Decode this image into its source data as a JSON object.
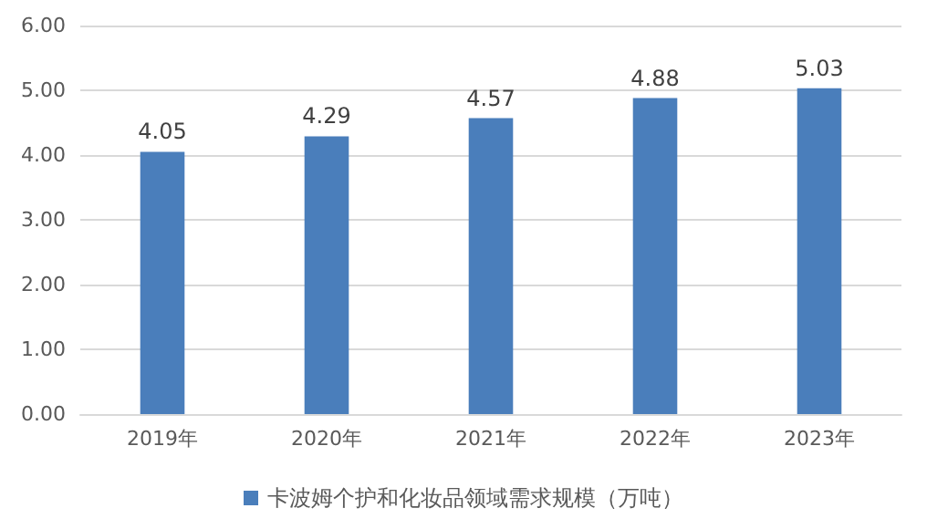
{
  "chart_data": {
    "type": "bar",
    "categories": [
      "2019年",
      "2020年",
      "2021年",
      "2022年",
      "2023年"
    ],
    "series": [
      {
        "name": "卡波姆个护和化妆品领域需求规模（万吨）",
        "color": "#4a7ebb",
        "values": [
          4.05,
          4.29,
          4.57,
          4.88,
          5.03
        ]
      }
    ],
    "ylim": [
      0,
      6
    ],
    "yticks": [
      {
        "value": 0,
        "label": "0.00"
      },
      {
        "value": 1,
        "label": "1.00"
      },
      {
        "value": 2,
        "label": "2.00"
      },
      {
        "value": 3,
        "label": "3.00"
      },
      {
        "value": 4,
        "label": "4.00"
      },
      {
        "value": 5,
        "label": "5.00"
      },
      {
        "value": 6,
        "label": "6.00"
      }
    ],
    "grid": "y",
    "legend": "bottom",
    "data_labels": true
  }
}
